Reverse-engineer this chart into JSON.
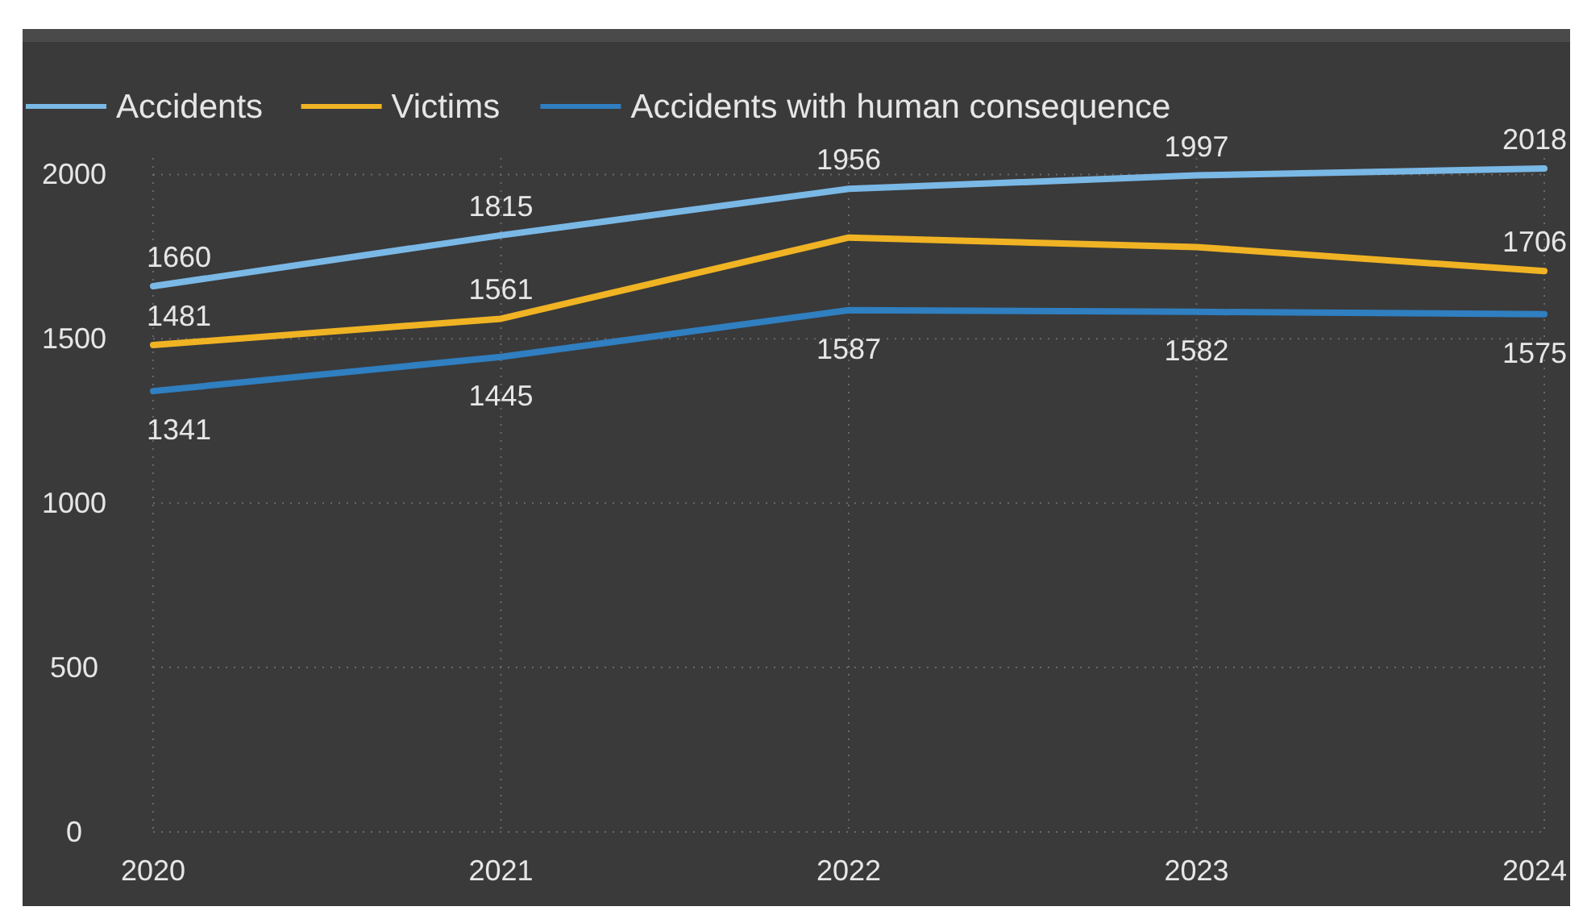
{
  "chart_data": {
    "type": "line",
    "categories": [
      "2020",
      "2021",
      "2022",
      "2023",
      "2024"
    ],
    "series": [
      {
        "name": "Accidents",
        "color": "#7ab8e6",
        "values": [
          1660,
          1815,
          1956,
          1997,
          2018
        ],
        "value_labels": [
          "1660",
          "1815",
          "1956",
          "1997",
          "2018"
        ]
      },
      {
        "name": "Victims",
        "color": "#f0b323",
        "values": [
          1481,
          1561,
          1808,
          1779,
          1706
        ],
        "value_labels": [
          "1481",
          "1561",
          null,
          null,
          "1706"
        ]
      },
      {
        "name": "Accidents with human consequence",
        "color": "#2f7fc1",
        "values": [
          1341,
          1445,
          1587,
          1582,
          1575
        ],
        "value_labels": [
          "1341",
          "1445",
          "1587",
          "1582",
          "1575"
        ]
      }
    ],
    "ylim": [
      0,
      2050
    ],
    "yticks": [
      0,
      500,
      1000,
      1500,
      2000
    ],
    "grid": true,
    "legend": "top left",
    "marker": "none",
    "line_style": "solid"
  }
}
